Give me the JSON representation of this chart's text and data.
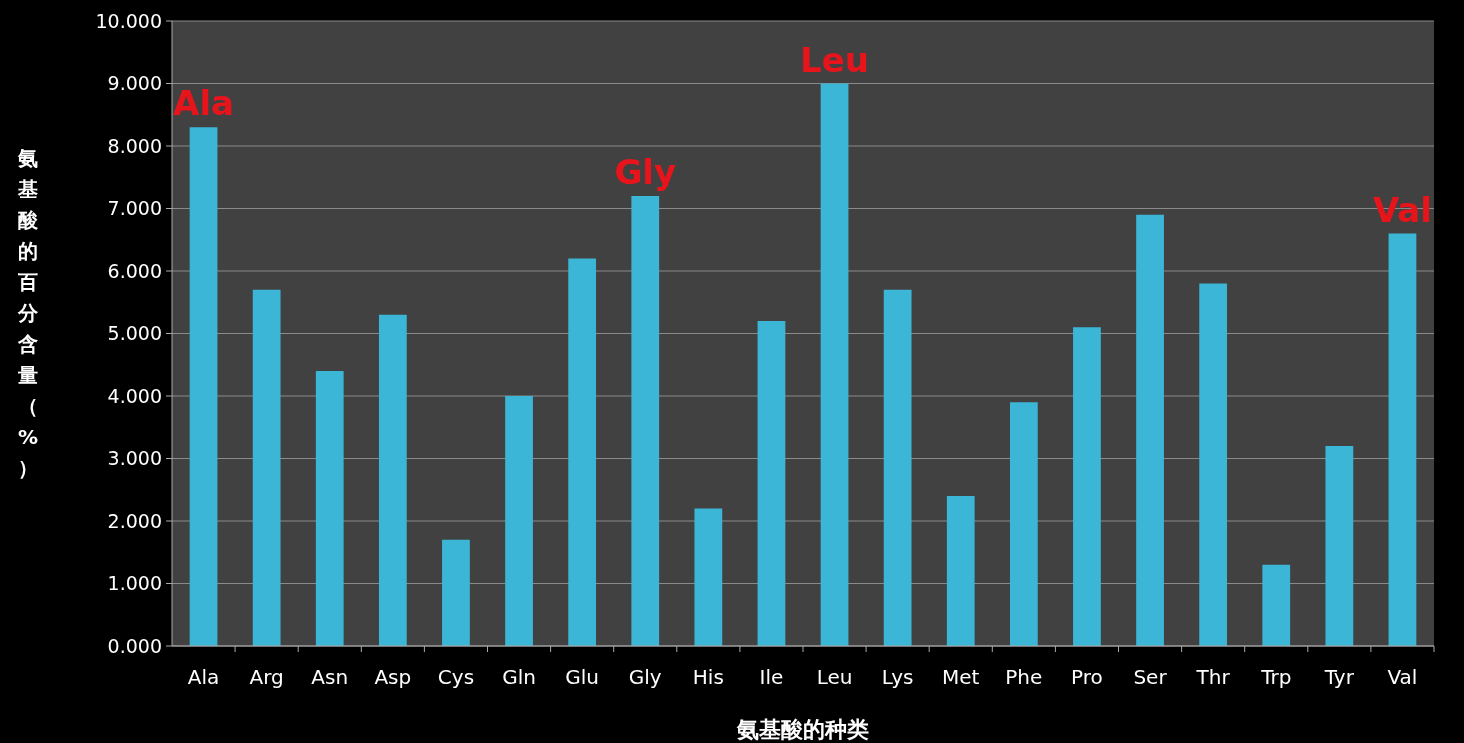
{
  "chart_data": {
    "type": "bar",
    "xlabel": "氨基酸的种类",
    "ylabel": "氨基酸的百分含量（%）",
    "categories": [
      "Ala",
      "Arg",
      "Asn",
      "Asp",
      "Cys",
      "Gln",
      "Glu",
      "Gly",
      "His",
      "Ile",
      "Leu",
      "Lys",
      "Met",
      "Phe",
      "Pro",
      "Ser",
      "Thr",
      "Trp",
      "Tyr",
      "Val"
    ],
    "values": [
      8.3,
      5.7,
      4.4,
      5.3,
      1.7,
      4.0,
      6.2,
      7.2,
      2.2,
      5.2,
      9.0,
      5.7,
      2.4,
      3.9,
      5.1,
      6.9,
      5.8,
      1.3,
      3.2,
      6.6
    ],
    "color": "#3cb6d6",
    "ylim": [
      0,
      10
    ],
    "yticks": [
      {
        "value": 0,
        "label": "0.000"
      },
      {
        "value": 1,
        "label": "1.000"
      },
      {
        "value": 2,
        "label": "2.000"
      },
      {
        "value": 3,
        "label": "3.000"
      },
      {
        "value": 4,
        "label": "4.000"
      },
      {
        "value": 5,
        "label": "5.000"
      },
      {
        "value": 6,
        "label": "6.000"
      },
      {
        "value": 7,
        "label": "7.000"
      },
      {
        "value": 8,
        "label": "8.000"
      },
      {
        "value": 9,
        "label": "9.000"
      },
      {
        "value": 10,
        "label": "10.000"
      }
    ],
    "grid": "y",
    "annotations": [
      {
        "text": "Ala",
        "x": "Ala",
        "y": 8.3
      },
      {
        "text": "Gly",
        "x": "Gly",
        "y": 7.2
      },
      {
        "text": "Leu",
        "x": "Leu",
        "y": 9.0
      },
      {
        "text": "Val",
        "x": "Val",
        "y": 6.6
      }
    ]
  }
}
